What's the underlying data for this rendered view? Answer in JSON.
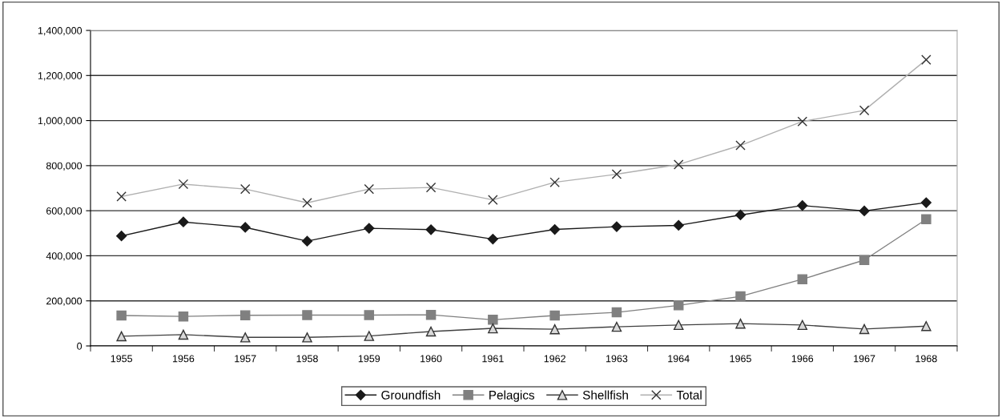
{
  "chart_data": {
    "type": "line",
    "categories": [
      "1955",
      "1956",
      "1957",
      "1958",
      "1959",
      "1960",
      "1961",
      "1962",
      "1963",
      "1964",
      "1965",
      "1966",
      "1967",
      "1968"
    ],
    "series": [
      {
        "name": "Groundfish",
        "color": "#1a1a1a",
        "marker": "diamond",
        "values": [
          488000,
          550000,
          526000,
          465000,
          522000,
          516000,
          474000,
          517000,
          529000,
          535000,
          581000,
          623000,
          599000,
          636000
        ]
      },
      {
        "name": "Pelagics",
        "color": "#808080",
        "marker": "square",
        "values": [
          135000,
          131000,
          136000,
          137000,
          137000,
          138000,
          116000,
          135000,
          149000,
          180000,
          220000,
          296000,
          381000,
          562000
        ]
      },
      {
        "name": "Shellfish",
        "color": "#404040",
        "marker": "triangle",
        "values": [
          43000,
          50000,
          38000,
          38000,
          44000,
          64000,
          78000,
          74000,
          85000,
          93000,
          99000,
          93000,
          75000,
          88000
        ]
      },
      {
        "name": "Total",
        "color": "#b0b0b0",
        "marker": "cross",
        "values": [
          663000,
          718000,
          696000,
          635000,
          696000,
          703000,
          648000,
          726000,
          762000,
          805000,
          890000,
          996000,
          1045000,
          1270000
        ]
      }
    ],
    "ylim": [
      0,
      1400000
    ],
    "yticks": [
      0,
      {
        "value": 200000,
        "label": "200,000"
      },
      {
        "value": 400000,
        "label": "400,000"
      },
      {
        "value": 600000,
        "label": "600,000"
      },
      {
        "value": 800000,
        "label": "800,000"
      },
      {
        "value": 1000000,
        "label": "1,000,000"
      },
      {
        "value": 1200000,
        "label": "1,200,000"
      },
      {
        "value": 1400000,
        "label": "1,400,000"
      }
    ],
    "grid": "y",
    "legend": "bottom"
  }
}
